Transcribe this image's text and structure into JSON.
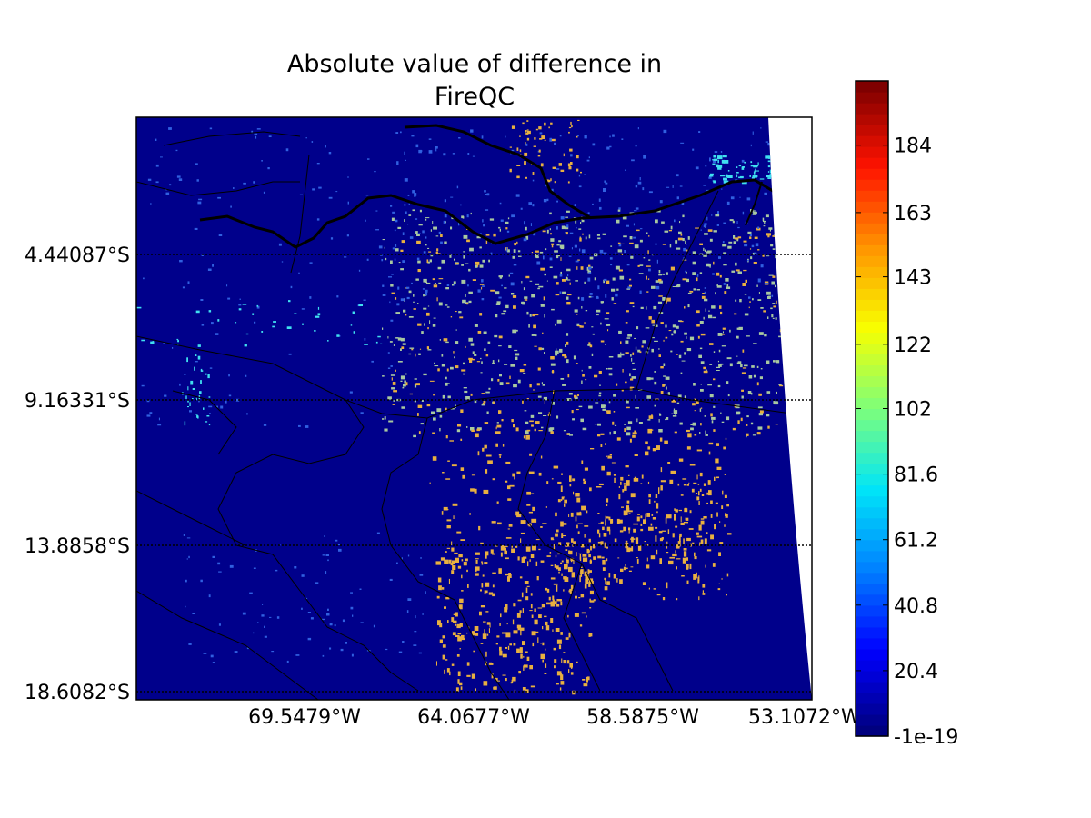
{
  "title_line1": "Absolute value of difference in",
  "title_line2": "FireQC",
  "lat_labels": [
    "4.44087°S",
    "9.16331°S",
    "13.8858°S",
    "18.6082°S"
  ],
  "lon_labels": [
    "69.5479°W",
    "64.0677°W",
    "58.5875°W",
    "53.1072°W"
  ],
  "colorbar": {
    "ticks": [
      "-1e-19",
      "20.4",
      "40.8",
      "61.2",
      "81.6",
      "102",
      "122",
      "143",
      "163",
      "184"
    ],
    "colors": [
      "#00007f",
      "#0000ff",
      "#0080ff",
      "#00e5f8",
      "#7dff7a",
      "#f8ff00",
      "#ff9400",
      "#ff1300",
      "#7f0000"
    ],
    "min": -1e-19,
    "max": 204
  },
  "colors": {
    "background": "#00008b",
    "high_diff": "#e8b040",
    "mid_diff": "#a8c8a0",
    "low_diff": "#3060e0",
    "cyan_diff": "#40e0f0"
  }
}
